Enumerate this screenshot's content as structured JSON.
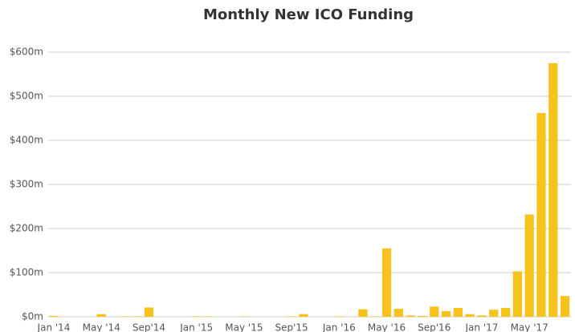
{
  "chart_data": {
    "type": "bar",
    "title": "Monthly New ICO Funding",
    "categories": [
      "Jan '14",
      null,
      null,
      null,
      "May '14",
      null,
      null,
      null,
      "Sep'14",
      null,
      null,
      null,
      "Jan '15",
      null,
      null,
      null,
      "May '15",
      null,
      null,
      null,
      "Sep'15",
      null,
      null,
      null,
      "Jan '16",
      null,
      null,
      null,
      "May '16",
      null,
      null,
      null,
      "Sep'16",
      null,
      null,
      null,
      "Jan '17",
      null,
      null,
      null,
      "May '17",
      null,
      null,
      null
    ],
    "values": [
      2,
      0,
      0,
      0,
      6,
      0,
      1,
      1,
      21,
      0,
      0,
      0,
      1,
      1,
      0,
      0,
      1,
      0,
      0,
      0,
      1,
      6,
      0,
      0,
      1,
      0,
      17,
      1,
      155,
      18,
      3,
      2,
      23,
      13,
      20,
      6,
      3,
      16,
      20,
      103,
      232,
      462,
      575,
      47
    ],
    "color": "#f7c21b",
    "ylim": [
      0,
      600
    ],
    "yticks": [
      {
        "value": 0,
        "label": "$0m"
      },
      {
        "value": 100,
        "label": "$100m"
      },
      {
        "value": 200,
        "label": "$200m"
      },
      {
        "value": 300,
        "label": "$300m"
      },
      {
        "value": 400,
        "label": "$400m"
      },
      {
        "value": 500,
        "label": "$500m"
      },
      {
        "value": 600,
        "label": "$600m"
      }
    ],
    "grid": true
  }
}
